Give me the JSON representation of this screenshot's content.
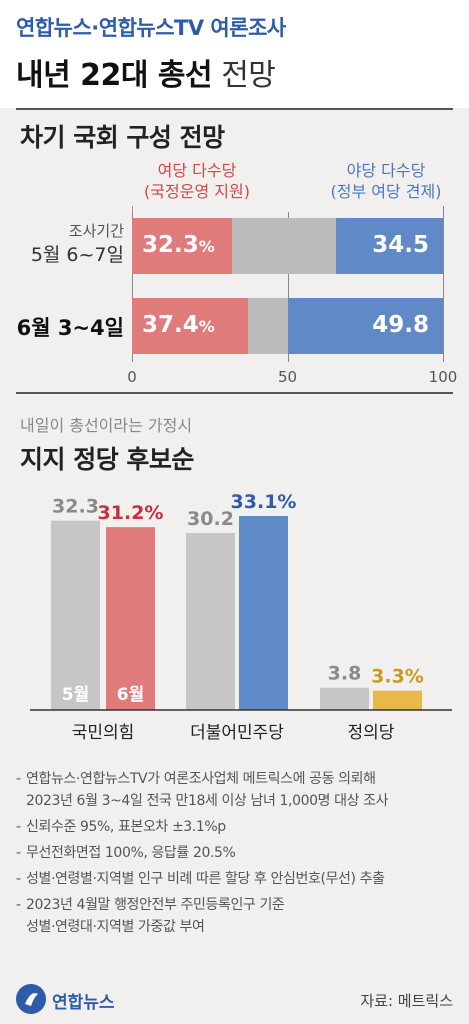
{
  "header": {
    "source_line": "연합뉴스·연합뉴스TV 여론조사",
    "headline_bold": "내년 22대 총선",
    "headline_light": "전망"
  },
  "section1": {
    "title": "차기 국회 구성 전망",
    "legend_left_line1": "여당 다수당",
    "legend_left_line2": "(국정운영 지원)",
    "legend_right_line1": "야당 다수당",
    "legend_right_line2": "(정부 여당 견제)",
    "colors": {
      "ruling": "#e07b7b",
      "neutral": "#bdbbba",
      "opposition": "#6089c8"
    }
  },
  "section2": {
    "subtitle": "내일이 총선이라는 가정시",
    "title": "지지 정당 후보순",
    "colors": {
      "may": "#c8c6c4",
      "minjoo": "#6089c8",
      "ppp": "#e07b7b",
      "justice": "#e8b84a",
      "label_gray": "#8a8a8a",
      "label_red": "#c9303c",
      "label_blue": "#2f5ca8",
      "label_gold": "#c99a1c"
    }
  },
  "chart_data": [
    {
      "type": "bar",
      "orientation": "horizontal",
      "stacked": true,
      "title": "차기 국회 구성 전망",
      "categories": [
        "조사기간 5월 6~7일",
        "6월 3~4일"
      ],
      "row_label_prefix": "조사기간",
      "row_label_main": [
        "5월 6~7일",
        "6월 3~4일"
      ],
      "series": [
        {
          "name": "여당 다수당 (국정운영 지원)",
          "values": [
            32.3,
            37.4
          ]
        },
        {
          "values": [
            33.2,
            12.8
          ]
        },
        {
          "name": "야당 다수당 (정부 여당 견제)",
          "values": [
            34.5,
            49.8
          ]
        }
      ],
      "ruling_labels": [
        "32.3",
        "37.4"
      ],
      "pct_unit": "%",
      "opposition_labels": [
        "34.5",
        "49.8"
      ],
      "xlim": [
        0,
        100
      ],
      "xticks": [
        "0",
        "50",
        "100"
      ]
    },
    {
      "type": "bar",
      "title": "지지 정당 후보순",
      "categories": [
        "국민의힘",
        "더불어민주당",
        "정의당"
      ],
      "series": [
        {
          "name": "5월",
          "values": [
            32.3,
            30.2,
            3.8
          ]
        },
        {
          "name": "6월",
          "values": [
            31.2,
            33.1,
            3.3
          ]
        }
      ],
      "may_labels": [
        "32.3",
        "30.2",
        "3.8"
      ],
      "june_labels": [
        "31.2%",
        "33.1%",
        "3.3%"
      ],
      "ylim": [
        0,
        33.1
      ]
    }
  ],
  "notes": [
    [
      "연합뉴스·연합뉴스TV가 여론조사업체 메트릭스에 공동 의뢰해",
      "2023년 6월 3~4일 전국 만18세 이상 남녀 1,000명 대상 조사"
    ],
    [
      "신뢰수준 95%, 표본오차 ±3.1%p"
    ],
    [
      "무선전화면접 100%, 응답률 20.5%"
    ],
    [
      "성별·연령별·지역별 인구 비례 따른 할당 후 안심번호(무선) 추출"
    ],
    [
      "2023년 4월말 행정안전부 주민등록인구 기준",
      "성별·연령대·지역별 가중값 부여"
    ]
  ],
  "footer": {
    "logo_text": "연합뉴스",
    "credit": "자료: 메트릭스"
  }
}
